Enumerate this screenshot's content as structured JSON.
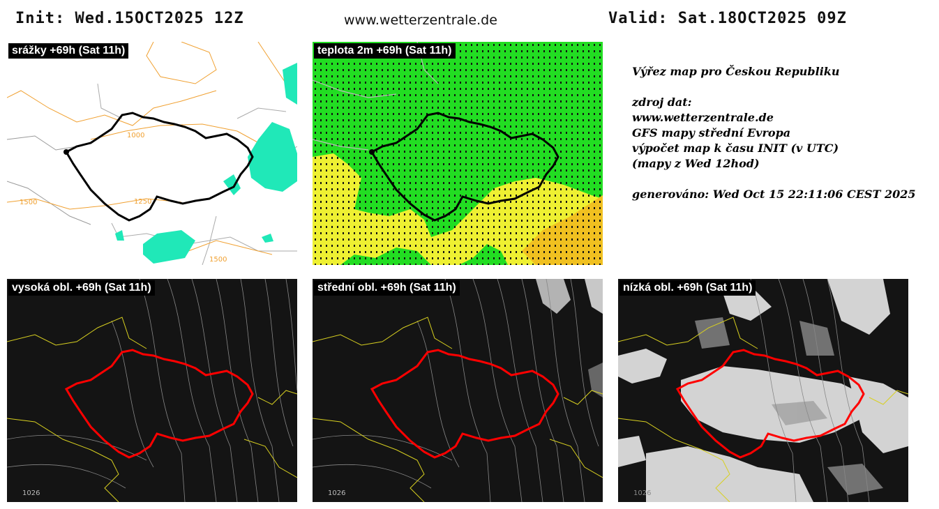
{
  "header": {
    "init": "Init: Wed.15OCT2025 12Z",
    "site": "www.wetterzentrale.de",
    "valid": "Valid: Sat.18OCT2025 09Z"
  },
  "panels": {
    "precip": {
      "label": "srážky +69h (Sat 11h)",
      "iso": [
        "1000",
        "1500",
        "1250",
        "1500"
      ]
    },
    "temp": {
      "label": "teplota 2m +69h (Sat 11h)"
    },
    "high": {
      "label": "vysoká obl. +69h (Sat 11h)",
      "pressure": "1026"
    },
    "mid": {
      "label": "střední obl. +69h (Sat 11h)",
      "pressure": "1026"
    },
    "low": {
      "label": "nízká obl. +69h (Sat 11h)",
      "pressure": "1026"
    }
  },
  "info": {
    "title": "Výřez map pro Českou Republiku",
    "source_label": "zdroj dat:",
    "source_site": "www.wetterzentrale.de",
    "model": "GFS mapy střední Evropa",
    "calc": "výpočet map k času INIT (v UTC)",
    "maps_from": "(mapy z Wed 12hod)",
    "generated": "generováno: Wed Oct 15 22:11:06 CEST 2025"
  },
  "colors": {
    "precip": "#20e8b8",
    "temp_green": "#22dd22",
    "temp_yellow": "#eef032",
    "border_black": "#000000",
    "border_red": "#ff0000",
    "cloud_bg": "#141414"
  }
}
